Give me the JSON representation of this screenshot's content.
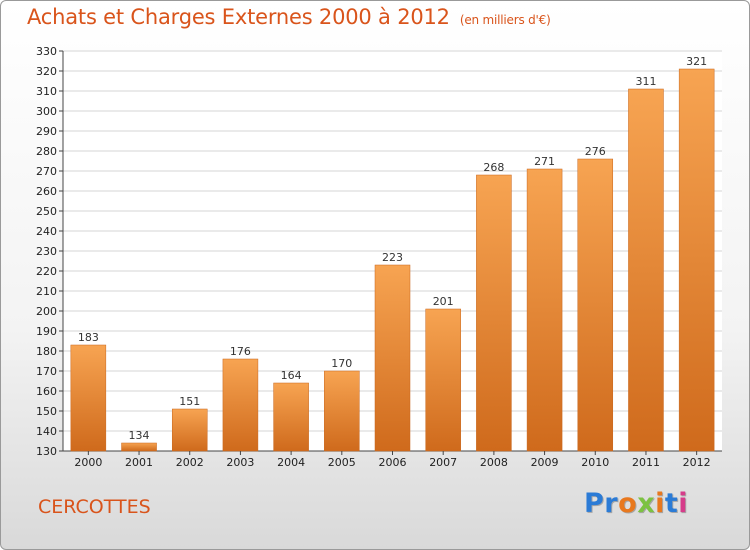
{
  "title": "Achats et Charges Externes 2000 à 2012",
  "unit_note": "(en milliers d'€)",
  "commune": "CERCOTTES",
  "logo": {
    "letters": [
      "P",
      "r",
      "o",
      "x",
      "i",
      "t",
      "i"
    ],
    "colors": [
      "#2b7bd6",
      "#2b7bd6",
      "#e8781e",
      "#7cc242",
      "#e8781e",
      "#2b7bd6",
      "#d63c8a"
    ]
  },
  "colors": {
    "title": "#d9541b",
    "bar_light": "#f7a452",
    "bar_dark": "#cf6a1c",
    "grid": "#d6d6d6"
  },
  "chart_data": {
    "type": "bar",
    "categories": [
      "2000",
      "2001",
      "2002",
      "2003",
      "2004",
      "2005",
      "2006",
      "2007",
      "2008",
      "2009",
      "2010",
      "2011",
      "2012"
    ],
    "values": [
      183,
      134,
      151,
      176,
      164,
      170,
      223,
      201,
      268,
      271,
      276,
      311,
      321
    ],
    "ylim": [
      130,
      330
    ],
    "yticks": [
      130,
      140,
      150,
      160,
      170,
      180,
      190,
      200,
      210,
      220,
      230,
      240,
      250,
      260,
      270,
      280,
      290,
      300,
      310,
      320,
      330
    ],
    "grid": true
  }
}
